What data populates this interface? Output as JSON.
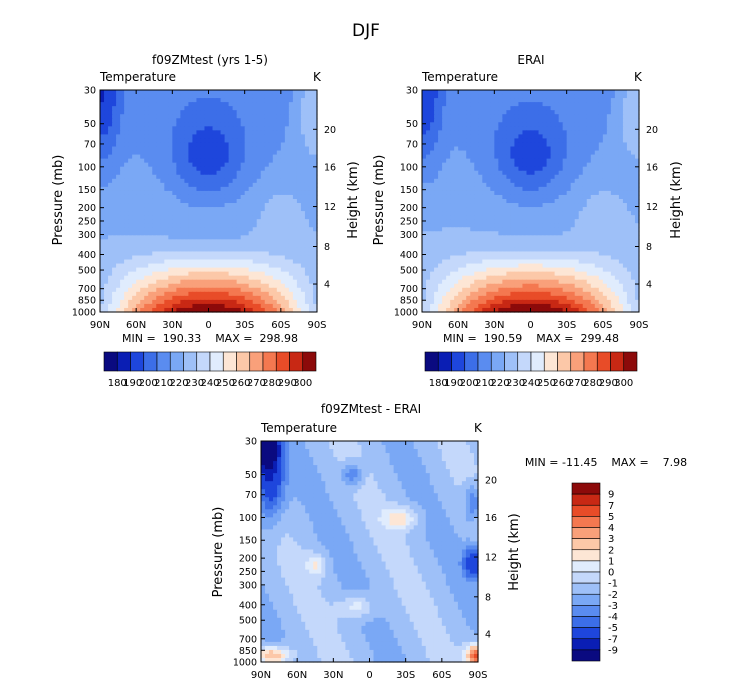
{
  "figure_title": "DJF",
  "colors": {
    "temp": [
      "#0a0a80",
      "#0a1eb4",
      "#1e46dc",
      "#3c6ee8",
      "#5a8cf0",
      "#7aa8f5",
      "#9ec0f8",
      "#c4d8fb",
      "#e0ecfd",
      "#fde6d5",
      "#fcc8a8",
      "#f9a07a",
      "#f47850",
      "#e84c28",
      "#c82814",
      "#8c0a0a"
    ],
    "diff": [
      "#0a0a80",
      "#0a1eb4",
      "#1e46dc",
      "#3c6ee8",
      "#5a8cf0",
      "#7aa8f5",
      "#9ec0f8",
      "#c4d8fb",
      "#e0ecfd",
      "#fde6d5",
      "#fcc8a8",
      "#f9a07a",
      "#f47850",
      "#e84c28",
      "#c82814",
      "#8c0a0a"
    ]
  },
  "chart_data": [
    {
      "type": "heatmap",
      "title": "f09ZMtest (yrs 1-5)",
      "field_label": "Temperature",
      "units": "K",
      "ylabel": "Pressure (mb)",
      "y2label": "Height (km)",
      "x_ticks": [
        "90N",
        "60N",
        "30N",
        "0",
        "30S",
        "60S",
        "90S"
      ],
      "y_ticks": [
        "30",
        "50",
        "70",
        "100",
        "150",
        "200",
        "250",
        "300",
        "400",
        "500",
        "700",
        "850",
        "1000"
      ],
      "y2_ticks": [
        "20",
        "16",
        "12",
        "8",
        "4"
      ],
      "stats": "MIN =  190.33    MAX =  298.98",
      "value_range": [
        190.33,
        298.98
      ]
    },
    {
      "type": "heatmap",
      "title": "ERAI",
      "field_label": "Temperature",
      "units": "K",
      "ylabel": "Pressure (mb)",
      "y2label": "Height (km)",
      "x_ticks": [
        "90N",
        "60N",
        "30N",
        "0",
        "30S",
        "60S",
        "90S"
      ],
      "y_ticks": [
        "30",
        "50",
        "70",
        "100",
        "150",
        "200",
        "250",
        "300",
        "400",
        "500",
        "700",
        "850",
        "1000"
      ],
      "y2_ticks": [
        "20",
        "16",
        "12",
        "8",
        "4"
      ],
      "stats": "MIN =  190.59    MAX =  299.48",
      "value_range": [
        190.59,
        299.48
      ]
    },
    {
      "type": "heatmap",
      "title": "f09ZMtest - ERAI",
      "field_label": "Temperature",
      "units": "K",
      "ylabel": "Pressure (mb)",
      "y2label": "Height (km)",
      "x_ticks": [
        "90N",
        "60N",
        "30N",
        "0",
        "30S",
        "60S",
        "90S"
      ],
      "y_ticks": [
        "30",
        "50",
        "70",
        "100",
        "150",
        "200",
        "250",
        "300",
        "400",
        "500",
        "700",
        "850",
        "1000"
      ],
      "y2_ticks": [
        "20",
        "16",
        "12",
        "8",
        "4"
      ],
      "stats": "MIN = -11.45    MAX =    7.98",
      "value_range": [
        -11.45,
        7.98
      ]
    }
  ],
  "colorbar_temp": {
    "labels": [
      "180",
      "190",
      "200",
      "210",
      "220",
      "230",
      "240",
      "250",
      "260",
      "270",
      "280",
      "290",
      "300"
    ]
  },
  "colorbar_diff": {
    "labels": [
      "9",
      "7",
      "5",
      "4",
      "3",
      "2",
      "1",
      "0",
      "-1",
      "-2",
      "-3",
      "-4",
      "-5",
      "-7",
      "-9"
    ]
  }
}
